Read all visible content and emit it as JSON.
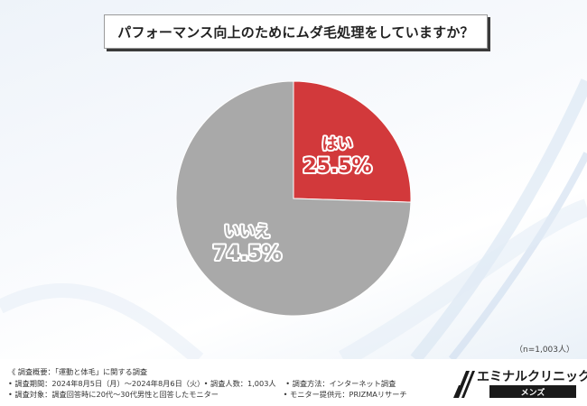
{
  "chart_data": {
    "type": "pie",
    "title": "パフォーマンス向上のためにムダ毛処理をしていますか？",
    "slices": [
      {
        "label": "はい",
        "value": 25.5,
        "display": "25.5%",
        "color": "#d2393b"
      },
      {
        "label": "いいえ",
        "value": 74.5,
        "display": "74.5%",
        "color": "#a9a9a9"
      }
    ]
  },
  "sample_size": "（n=1,003人）",
  "footnotes": {
    "overview": "《 調査概要：「運動と体毛」に関する調査",
    "period": "• 調査期間：2024年8月5日（月）～2024年8月6日（火）",
    "count": "• 調査人数：1,003人",
    "method": "• 調査方法：インターネット調査",
    "target": "• 調査対象：調査回答時に20代～30代男性と回答したモニター",
    "provider": "• モニター提供元：PRIZMAリサーチ"
  },
  "brand": {
    "name": "エミナルクリニック",
    "sub": "メンズ"
  },
  "colors": {
    "yes": "#d2393b",
    "no": "#a9a9a9"
  }
}
